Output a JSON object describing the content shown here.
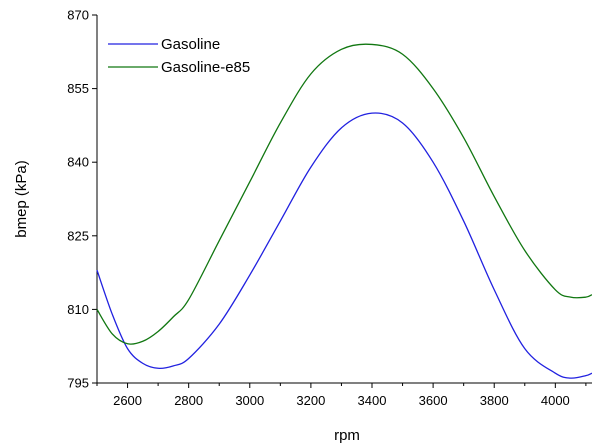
{
  "chart_data": {
    "type": "line",
    "title": "",
    "xlabel": "rpm",
    "ylabel": "bmep (kPa)",
    "xlim": [
      2500,
      4120
    ],
    "ylim": [
      795,
      870
    ],
    "x_ticks": [
      2600,
      2800,
      3000,
      3200,
      3400,
      3600,
      3800,
      4000
    ],
    "x_tick_labels": [
      "2600",
      "2800",
      "3000",
      "3200",
      "3400",
      "3600",
      "3800",
      "4000"
    ],
    "y_ticks": [
      795,
      810,
      825,
      840,
      855,
      870
    ],
    "y_tick_labels": [
      "795",
      "810",
      "825",
      "840",
      "855",
      "870"
    ],
    "grid": false,
    "legend_position": "top-left",
    "series": [
      {
        "name": "Gasoline",
        "color": "#2121e0",
        "x": [
          2500,
          2550,
          2600,
          2650,
          2700,
          2750,
          2800,
          2900,
          3000,
          3100,
          3200,
          3300,
          3400,
          3500,
          3600,
          3700,
          3800,
          3900,
          4000,
          4050,
          4100,
          4120
        ],
        "y": [
          818,
          809,
          802,
          799,
          798,
          798.5,
          800,
          807,
          817,
          828,
          839,
          847,
          850,
          848,
          840,
          828,
          814,
          802,
          797,
          796,
          796.5,
          797
        ]
      },
      {
        "name": "Gasoline-e85",
        "color": "#117711",
        "x": [
          2500,
          2550,
          2600,
          2650,
          2700,
          2750,
          2800,
          2900,
          3000,
          3100,
          3200,
          3300,
          3400,
          3500,
          3600,
          3700,
          3800,
          3900,
          4000,
          4050,
          4100,
          4120
        ],
        "y": [
          810,
          805,
          803,
          803.5,
          805.5,
          808.5,
          812,
          824,
          836,
          848,
          858,
          863,
          864,
          862,
          855,
          845,
          833,
          822,
          814,
          812.5,
          812.5,
          813
        ]
      }
    ]
  }
}
